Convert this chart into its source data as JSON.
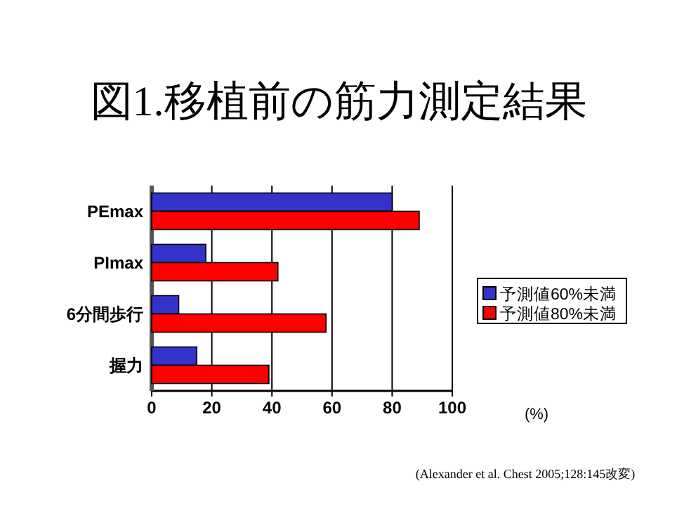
{
  "chart_data": {
    "type": "bar",
    "orientation": "horizontal",
    "title": "図1.移植前の筋力測定結果",
    "xlabel": "(%)",
    "categories": [
      "PEmax",
      "PImax",
      "6分間歩行",
      "握力"
    ],
    "series": [
      {
        "name": "予測値60%未満",
        "color": "#3333cc",
        "values": [
          80,
          18,
          9,
          15
        ]
      },
      {
        "name": "予測値80%未満",
        "color": "#ff0000",
        "values": [
          89,
          42,
          58,
          39
        ]
      }
    ],
    "xlim": [
      0,
      100
    ],
    "xticks": [
      0,
      20,
      40,
      60,
      80,
      100
    ],
    "grid": "x",
    "legend": "right",
    "annotations": [
      "(Alexander et al. Chest 2005;128:145改変)"
    ]
  }
}
